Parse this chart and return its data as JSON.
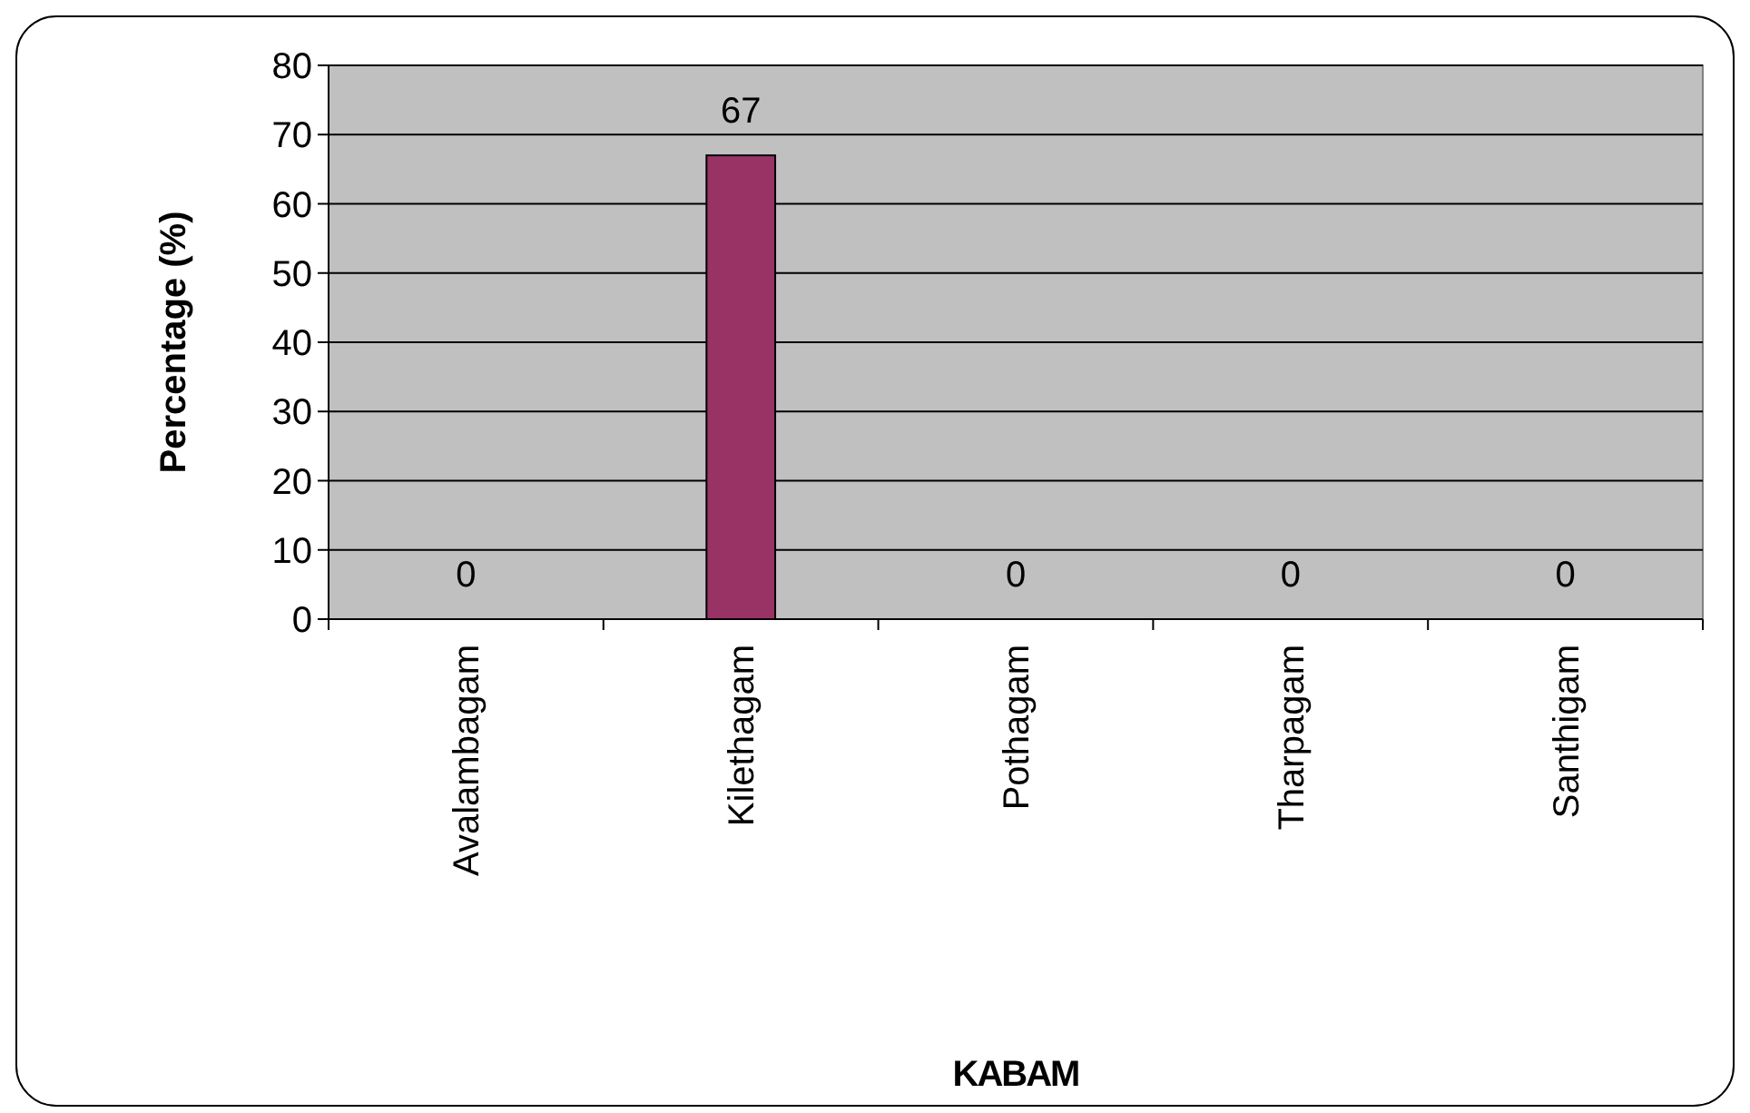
{
  "chart_data": {
    "type": "bar",
    "xlabel": "KABAM",
    "ylabel": "Percentage (%)",
    "categories": [
      "Avalambagam",
      "Kilethagam",
      "Pothagam",
      "Tharpagam",
      "Santhigam"
    ],
    "values": [
      0,
      67,
      0,
      0,
      0
    ],
    "color": "#993366",
    "ylim": [
      0,
      80
    ],
    "yticks": [
      0,
      10,
      20,
      30,
      40,
      50,
      60,
      70,
      80
    ],
    "grid": "y",
    "data_labels": true
  }
}
